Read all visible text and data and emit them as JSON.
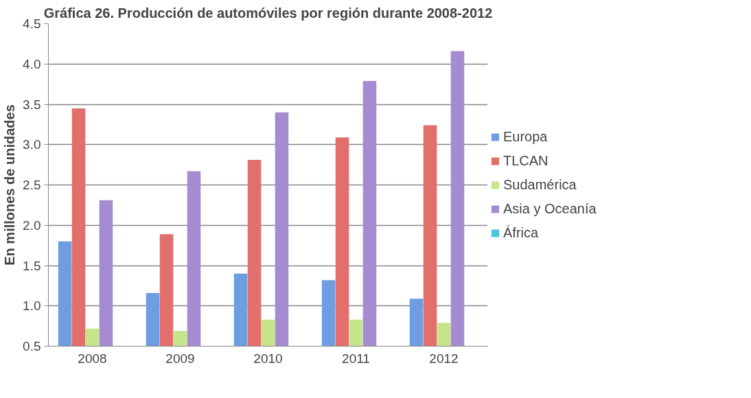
{
  "chart_data": {
    "type": "bar",
    "title": "Gráfica 26. Producción de automóviles por región durante 2008-2012",
    "ylabel": "En millones de unidades",
    "categories": [
      "2008",
      "2009",
      "2010",
      "2011",
      "2012"
    ],
    "series": [
      {
        "name": "Europa",
        "color": "#6f9ee0",
        "values": [
          1.8,
          1.16,
          1.4,
          1.32,
          1.09
        ]
      },
      {
        "name": "TLCAN",
        "color": "#e26f6b",
        "values": [
          3.45,
          1.89,
          2.81,
          3.09,
          3.24
        ]
      },
      {
        "name": "Sudamérica",
        "color": "#c6e58a",
        "values": [
          0.72,
          0.69,
          0.83,
          0.83,
          0.79
        ]
      },
      {
        "name": "Asia y Oceanía",
        "color": "#a58bd2",
        "values": [
          2.31,
          2.67,
          3.4,
          3.79,
          4.16
        ]
      },
      {
        "name": "África",
        "color": "#4bc6e0",
        "values": [
          null,
          null,
          null,
          null,
          null
        ]
      }
    ],
    "ylim": [
      0.5,
      4.5
    ],
    "yticks": [
      {
        "value": 0.5,
        "label": "0.5"
      },
      {
        "value": 1,
        "label": "1.0"
      },
      {
        "value": 1.5,
        "label": "1.5"
      },
      {
        "value": 2,
        "label": "2.0"
      },
      {
        "value": 2.5,
        "label": "2.5"
      },
      {
        "value": 3,
        "label": "3.0"
      },
      {
        "value": 3.5,
        "label": "3.5"
      },
      {
        "value": 4,
        "label": "4.0"
      },
      {
        "value": 4.5,
        "label": "4.5"
      }
    ],
    "grid": "y",
    "legend": "right"
  }
}
